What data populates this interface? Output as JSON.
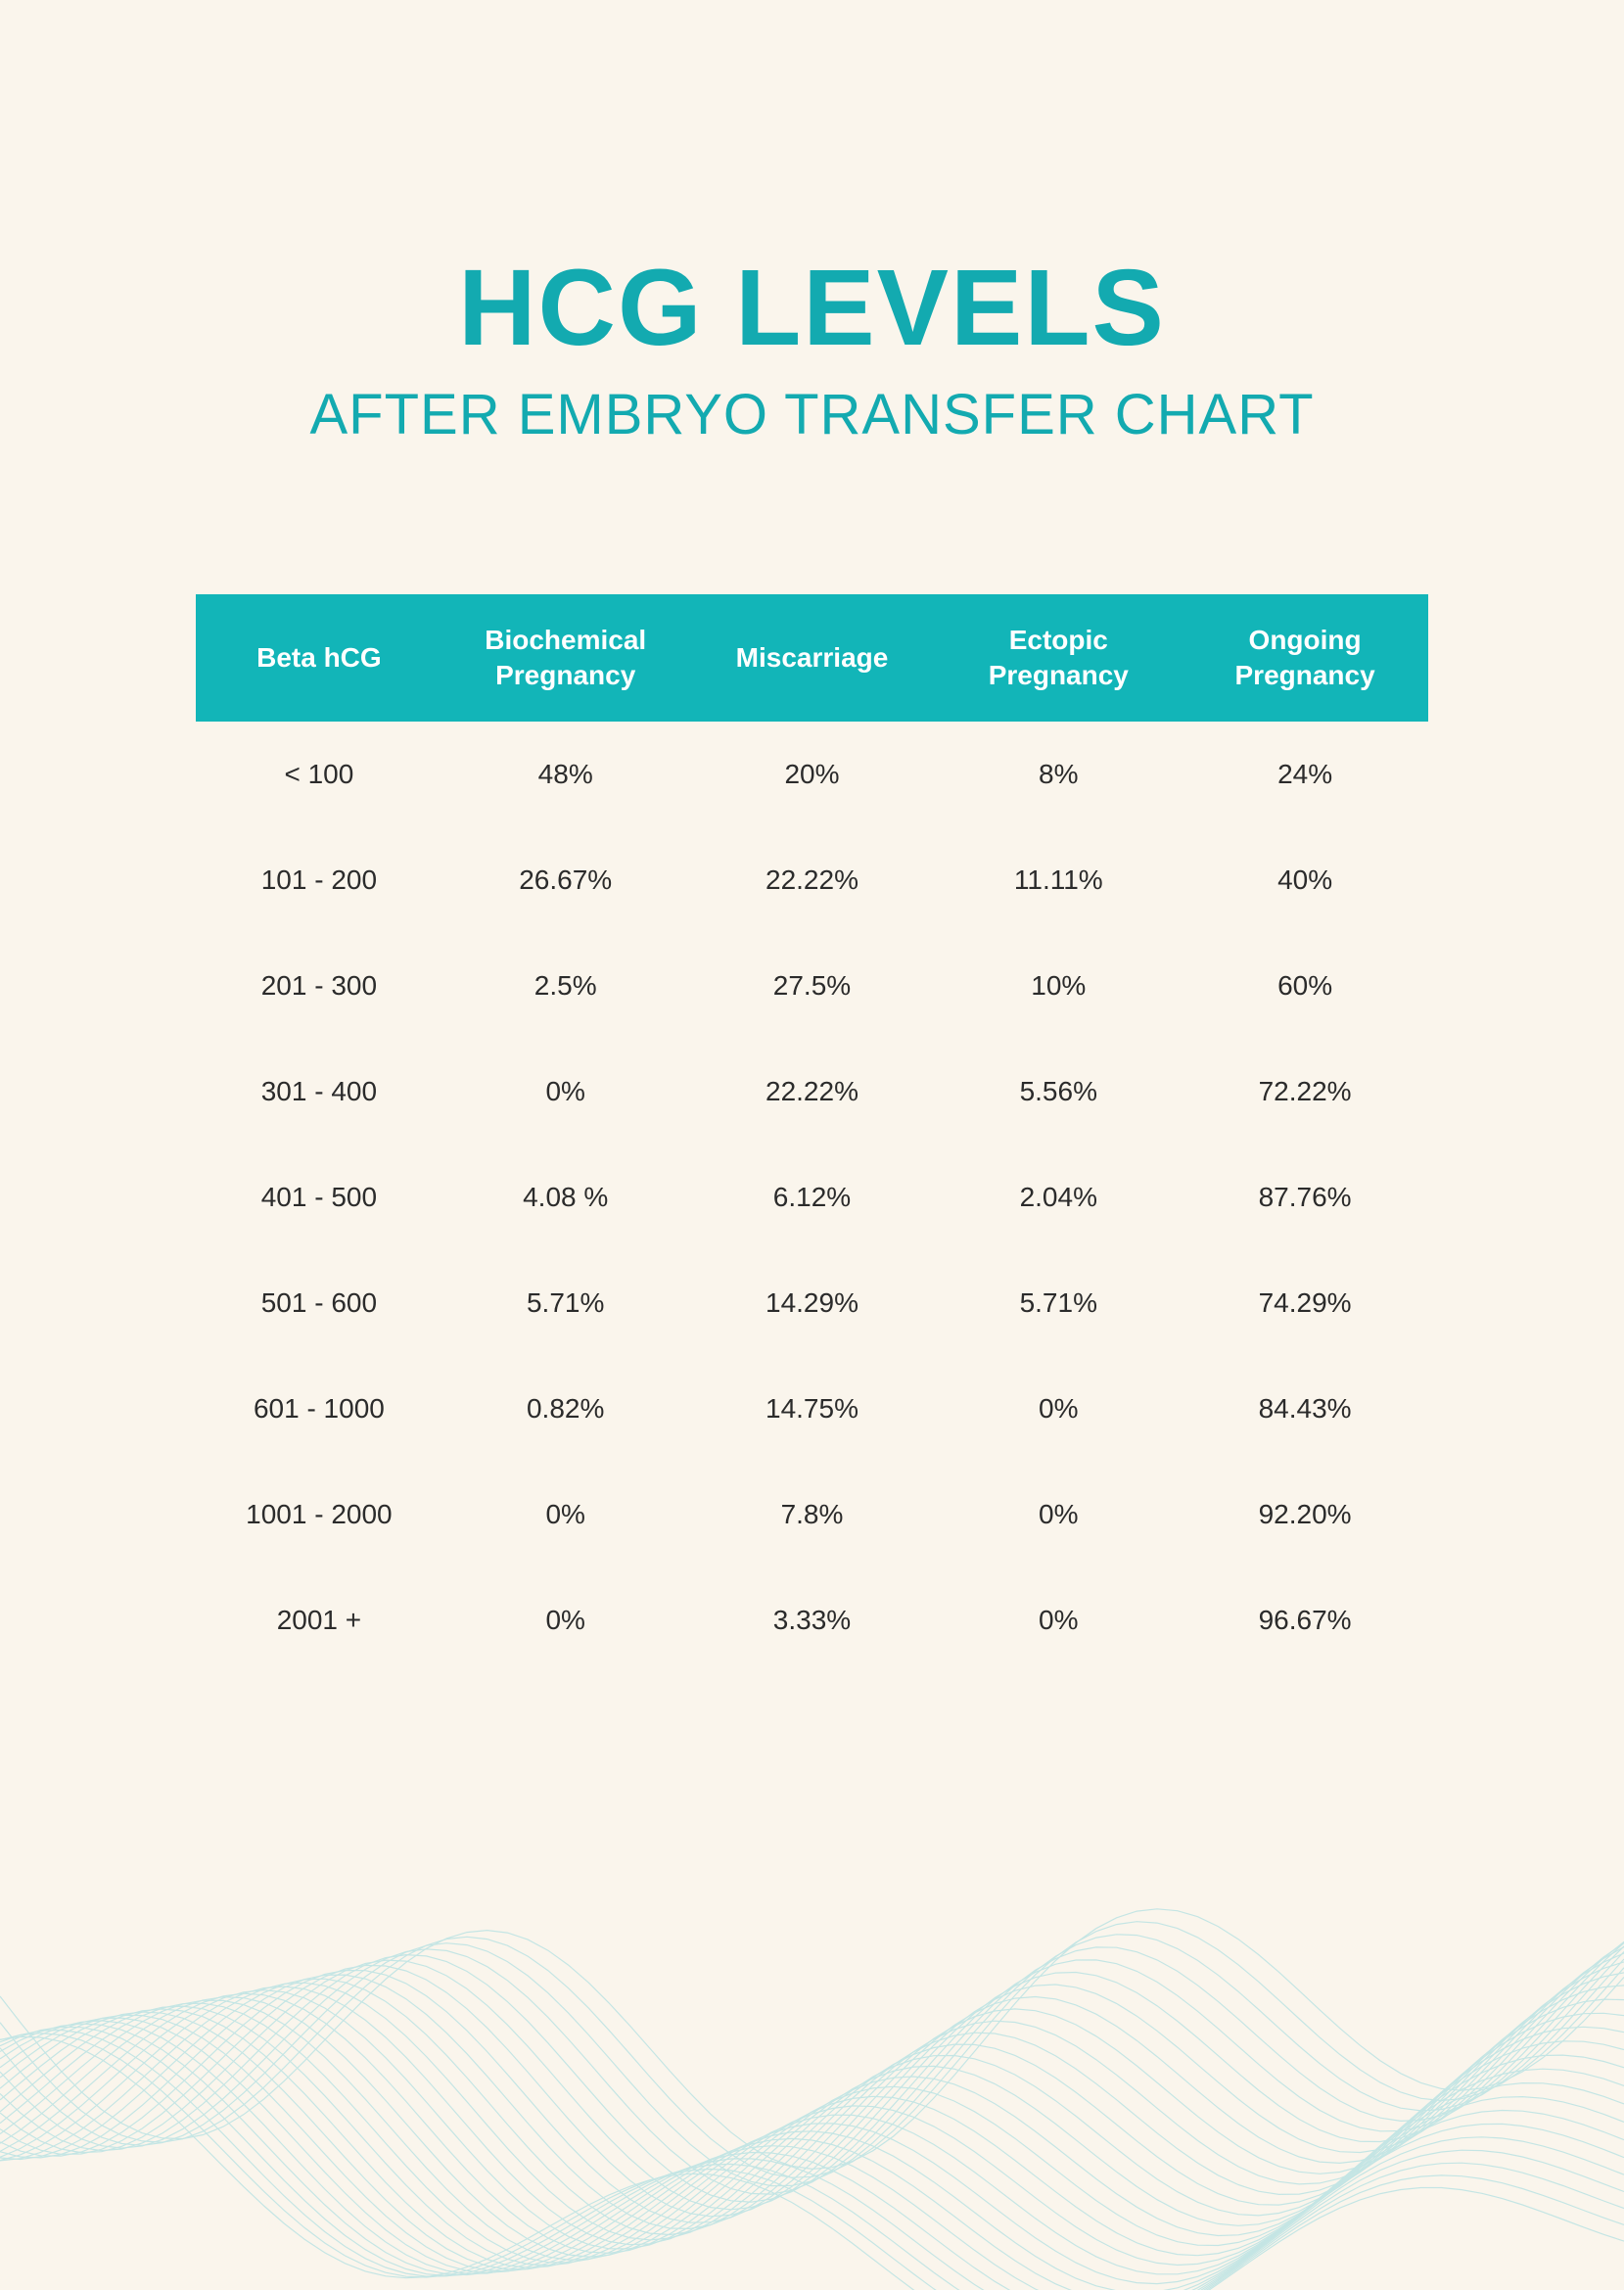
{
  "header": {
    "title": "HCG LEVELS",
    "subtitle": "AFTER EMBRYO TRANSFER CHART"
  },
  "colors": {
    "background": "#faf5ec",
    "accent": "#13aab0",
    "header_bg": "#12b5b8",
    "header_text": "#ffffff",
    "body_text": "#2b2b2b",
    "wave_stroke": "#bfe4e4"
  },
  "typography": {
    "title_fontsize": 110,
    "title_weight": 800,
    "subtitle_fontsize": 58,
    "subtitle_weight": 400,
    "header_fontsize": 28,
    "header_weight": 700,
    "body_fontsize": 28,
    "body_weight": 400
  },
  "table": {
    "type": "table",
    "columns": [
      "Beta hCG",
      "Biochemical Pregnancy",
      "Miscarriage",
      "Ectopic Pregnancy",
      "Ongoing Pregnancy"
    ],
    "rows": [
      [
        "< 100",
        "48%",
        "20%",
        "8%",
        "24%"
      ],
      [
        "101 - 200",
        "26.67%",
        "22.22%",
        "11.11%",
        "40%"
      ],
      [
        "201 - 300",
        "2.5%",
        "27.5%",
        "10%",
        "60%"
      ],
      [
        "301 - 400",
        "0%",
        "22.22%",
        "5.56%",
        "72.22%"
      ],
      [
        "401 - 500",
        "4.08 %",
        "6.12%",
        "2.04%",
        "87.76%"
      ],
      [
        "501 - 600",
        "5.71%",
        "14.29%",
        "5.71%",
        "74.29%"
      ],
      [
        "601 - 1000",
        "0.82%",
        "14.75%",
        "0%",
        "84.43%"
      ],
      [
        "1001 - 2000",
        "0%",
        "7.8%",
        "0%",
        "92.20%"
      ],
      [
        "2001 +",
        "0%",
        "3.33%",
        "0%",
        "96.67%"
      ]
    ],
    "header_row_height": 130,
    "body_row_height": 108
  }
}
